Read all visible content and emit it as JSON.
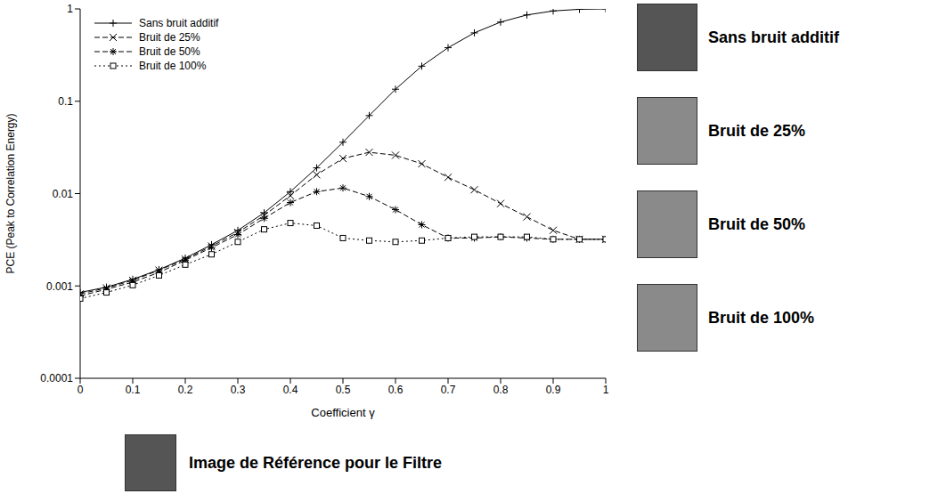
{
  "chart_data": {
    "type": "line",
    "xlabel": "Coefficient γ",
    "ylabel": "PCE (Peak to Correlation Energy)",
    "log": "y",
    "grid": false,
    "legend": "upper left",
    "xlim": [
      0,
      1
    ],
    "xticks": [
      0,
      0.1,
      0.2,
      0.3,
      0.4,
      0.5,
      0.6,
      0.7,
      0.8,
      0.9,
      1
    ],
    "ylim": [
      0.0001,
      1
    ],
    "yticks": [
      0.0001,
      0.001,
      0.01,
      0.1,
      1
    ],
    "x": [
      0,
      0.05,
      0.1,
      0.15,
      0.2,
      0.25,
      0.3,
      0.35,
      0.4,
      0.45,
      0.5,
      0.55,
      0.6,
      0.65,
      0.7,
      0.75,
      0.8,
      0.85,
      0.9,
      0.95,
      1
    ],
    "series": [
      {
        "name": "Sans bruit additif",
        "color": "#000000",
        "marker": "plus",
        "line_style": "solid",
        "values": [
          0.00085,
          0.00097,
          0.00118,
          0.0015,
          0.002,
          0.0028,
          0.004,
          0.0062,
          0.0105,
          0.019,
          0.036,
          0.07,
          0.135,
          0.24,
          0.38,
          0.55,
          0.72,
          0.86,
          0.95,
          0.99,
          1.0
        ]
      },
      {
        "name": "Bruit de 25%",
        "color": "#000000",
        "marker": "cross",
        "line_style": "dashed",
        "values": [
          0.00082,
          0.00095,
          0.00115,
          0.00148,
          0.00195,
          0.0027,
          0.0038,
          0.0058,
          0.0095,
          0.016,
          0.024,
          0.028,
          0.026,
          0.021,
          0.015,
          0.011,
          0.0078,
          0.0056,
          0.004,
          0.0032,
          0.0032
        ]
      },
      {
        "name": "Bruit de 50%",
        "color": "#000000",
        "marker": "star",
        "line_style": "dashed",
        "values": [
          0.00078,
          0.00092,
          0.0011,
          0.0014,
          0.0019,
          0.0026,
          0.0036,
          0.0054,
          0.008,
          0.0105,
          0.0115,
          0.0093,
          0.0067,
          0.0046,
          0.0033,
          0.0033,
          0.0034,
          0.0033,
          0.0032,
          0.0032,
          0.0032
        ]
      },
      {
        "name": "Bruit de 100%",
        "color": "#000000",
        "marker": "square",
        "line_style": "dotted",
        "values": [
          0.00073,
          0.00085,
          0.00102,
          0.0013,
          0.0017,
          0.0022,
          0.003,
          0.0041,
          0.0048,
          0.0045,
          0.0033,
          0.0031,
          0.003,
          0.0031,
          0.0033,
          0.0034,
          0.0034,
          0.0034,
          0.0032,
          0.0032,
          0.0032
        ]
      }
    ],
    "annotations": [
      "Sans bruit additif",
      "Bruit de 25%",
      "Bruit de 50%",
      "Bruit de 100%",
      "Image de Référence pour le Filtre"
    ]
  }
}
